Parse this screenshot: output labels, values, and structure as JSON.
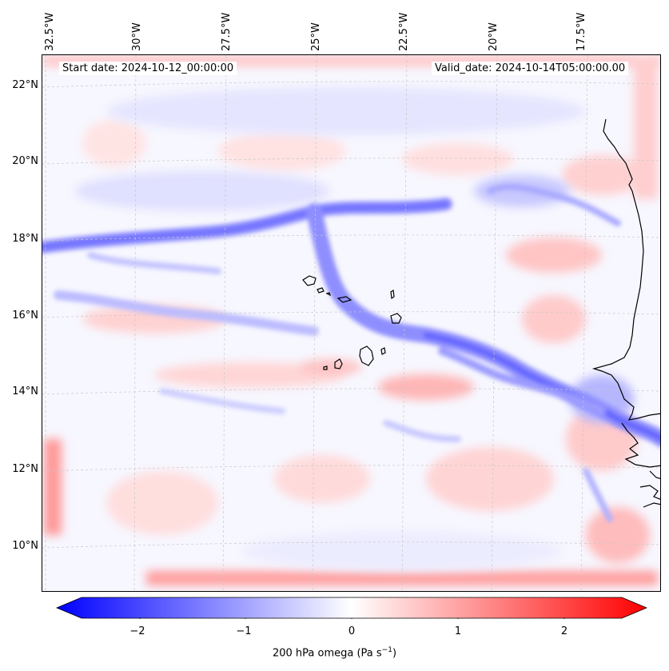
{
  "header": {
    "start_date": "Start date: 2024-10-12_00:00:00",
    "valid_date": "Valid_date: 2024-10-14T05:00:00.00"
  },
  "axes": {
    "lon_ticks": [
      "32.5°W",
      "30°W",
      "27.5°W",
      "25°W",
      "22.5°W",
      "20°W",
      "17.5°W"
    ],
    "lat_ticks": [
      "22°N",
      "20°N",
      "18°N",
      "16°N",
      "14°N",
      "12°N",
      "10°N"
    ]
  },
  "colorbar": {
    "ticks": [
      "−2",
      "−1",
      "0",
      "1",
      "2"
    ],
    "label_main": "200 hPa omega (Pa s",
    "label_sup": "−1",
    "label_end": ")",
    "vmin": -2.7,
    "vmax": 2.7,
    "cmap": "bwr"
  },
  "colors": {
    "negative": "#0000ff",
    "neutral": "#ffffff",
    "positive": "#ff0000",
    "coastline": "#000000",
    "gridline": "#c8c8c8"
  }
}
